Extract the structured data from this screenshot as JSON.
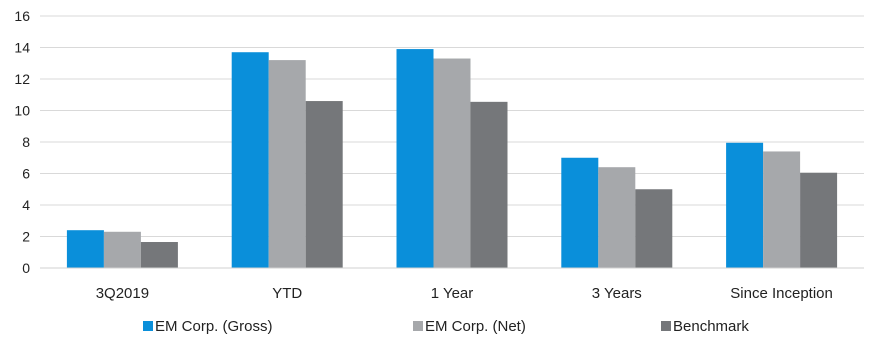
{
  "chart_data": {
    "type": "bar",
    "categories": [
      "3Q2019",
      "YTD",
      "1 Year",
      "3 Years",
      "Since Inception"
    ],
    "series": [
      {
        "name": "EM Corp. (Gross)",
        "color": "#0a8fda",
        "values": [
          2.4,
          13.7,
          13.9,
          7.0,
          7.95
        ]
      },
      {
        "name": "EM Corp. (Net)",
        "color": "#a6a8ab",
        "values": [
          2.3,
          13.2,
          13.3,
          6.4,
          7.4
        ]
      },
      {
        "name": "Benchmark",
        "color": "#75777a",
        "values": [
          1.65,
          10.6,
          10.55,
          5.0,
          6.05
        ]
      }
    ],
    "ylim": [
      0,
      16
    ],
    "yticks": [
      0,
      2,
      4,
      6,
      8,
      10,
      12,
      14,
      16
    ],
    "grid": true,
    "legend_position": "bottom"
  }
}
